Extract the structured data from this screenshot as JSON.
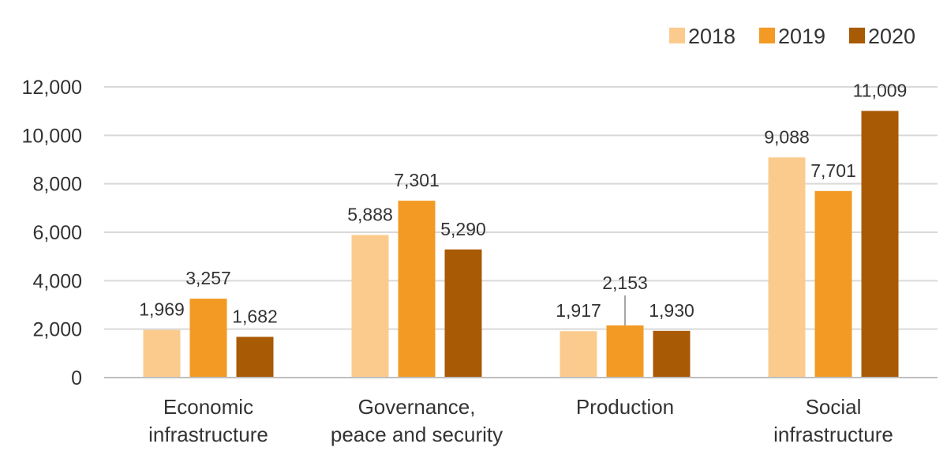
{
  "chart_data": {
    "type": "bar",
    "categories": [
      [
        "Economic",
        "infrastructure"
      ],
      [
        "Governance,",
        "peace and security"
      ],
      [
        "Production"
      ],
      [
        "Social",
        "infrastructure"
      ]
    ],
    "series": [
      {
        "name": "2018",
        "color": "#FBCB8E",
        "values": [
          1969,
          5888,
          1917,
          9088
        ],
        "labels": [
          "1,969",
          "5,888",
          "1,917",
          "9,088"
        ]
      },
      {
        "name": "2019",
        "color": "#F29A23",
        "values": [
          3257,
          7301,
          2153,
          7701
        ],
        "labels": [
          "3,257",
          "7,301",
          "2,153",
          "7,701"
        ]
      },
      {
        "name": "2020",
        "color": "#A85A04",
        "values": [
          1682,
          5290,
          1930,
          11009
        ],
        "labels": [
          "1,682",
          "5,290",
          "1,930",
          "11,009"
        ]
      }
    ],
    "ylim": [
      0,
      12000
    ],
    "yticks": [
      0,
      2000,
      4000,
      6000,
      8000,
      10000,
      12000
    ],
    "ytick_labels": [
      "0",
      "2,000",
      "4,000",
      "6,000",
      "8,000",
      "10,000",
      "12,000"
    ],
    "grid": true,
    "legend_position": "top-right",
    "title": "",
    "xlabel": "",
    "ylabel": ""
  }
}
